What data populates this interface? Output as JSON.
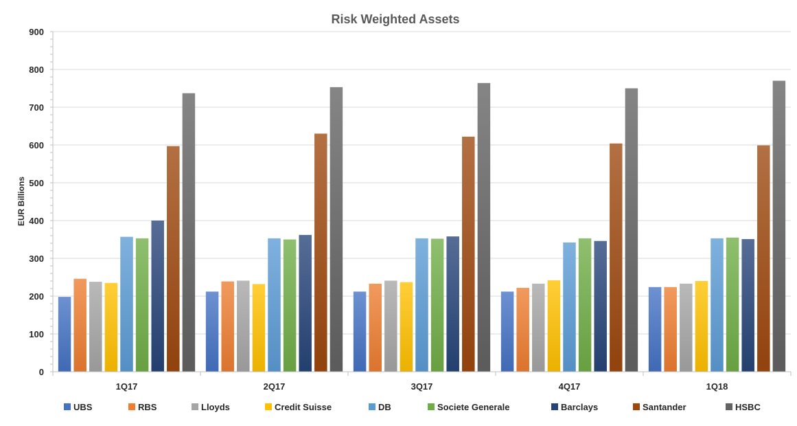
{
  "chart_data": {
    "type": "bar",
    "title": "Risk Weighted Assets",
    "xlabel": "",
    "ylabel": "EUR Billions",
    "ylim": [
      0,
      900
    ],
    "yticks": [
      0,
      100,
      200,
      300,
      400,
      500,
      600,
      700,
      800,
      900
    ],
    "grid": true,
    "legend_position": "bottom",
    "categories": [
      "1Q17",
      "2Q17",
      "3Q17",
      "4Q17",
      "1Q18"
    ],
    "series": [
      {
        "name": "UBS",
        "color": "#4472C4",
        "values": [
          198,
          212,
          212,
          212,
          224
        ]
      },
      {
        "name": "RBS",
        "color": "#ED7D31",
        "values": [
          246,
          239,
          233,
          222,
          224
        ]
      },
      {
        "name": "Lloyds",
        "color": "#A5A5A5",
        "values": [
          238,
          241,
          241,
          233,
          233
        ]
      },
      {
        "name": "Credit Suisse",
        "color": "#FFC000",
        "values": [
          235,
          232,
          237,
          242,
          240
        ]
      },
      {
        "name": "DB",
        "color": "#5B9BD5",
        "values": [
          357,
          353,
          353,
          342,
          353
        ]
      },
      {
        "name": "Societe Generale",
        "color": "#70AD47",
        "values": [
          353,
          350,
          352,
          353,
          355
        ]
      },
      {
        "name": "Barclays",
        "color": "#264478",
        "values": [
          400,
          362,
          358,
          346,
          351
        ]
      },
      {
        "name": "Santander",
        "color": "#9E480E",
        "values": [
          597,
          630,
          622,
          604,
          599
        ]
      },
      {
        "name": "HSBC",
        "color": "#636363",
        "values": [
          737,
          753,
          764,
          750,
          770
        ]
      }
    ]
  }
}
